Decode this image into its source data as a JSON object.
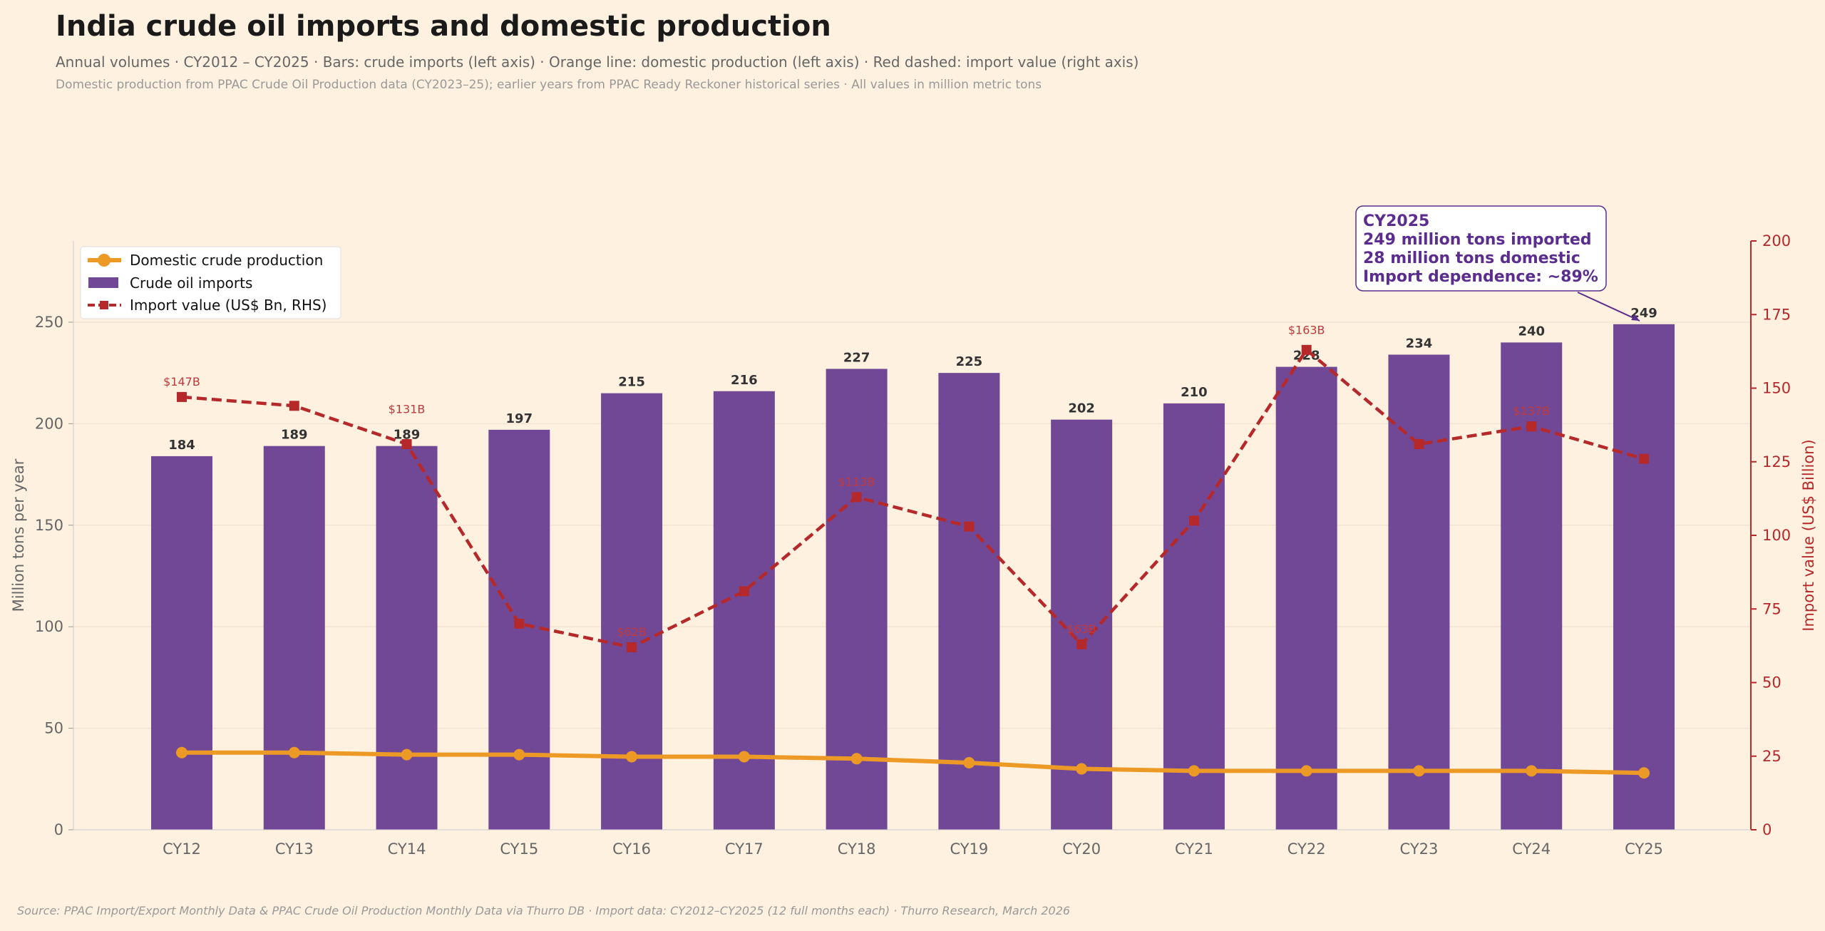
{
  "chart_data": {
    "type": "bar",
    "title": "India crude oil imports and domestic production",
    "subtitle": "Annual volumes  ·  CY2012 – CY2025  ·  Bars: crude imports (left axis)  ·  Orange line: domestic production (left axis)  ·  Red dashed: import value (right axis)",
    "note": "Domestic production from PPAC Crude Oil Production data (CY2023–25); earlier years from PPAC Ready Reckoner historical series  ·  All values in million metric tons",
    "source": "Source: PPAC Import/Export Monthly Data & PPAC Crude Oil Production Monthly Data via Thurro DB  ·  Import data: CY2012–CY2025 (12 full months each)  ·  Thurro Research, March 2026",
    "categories": [
      "CY12",
      "CY13",
      "CY14",
      "CY15",
      "CY16",
      "CY17",
      "CY18",
      "CY19",
      "CY20",
      "CY21",
      "CY22",
      "CY23",
      "CY24",
      "CY25"
    ],
    "ylabel": "Million tons per year",
    "y2label": "Import value (US$ Billion)",
    "ylim": [
      0,
      290
    ],
    "y2lim": [
      0,
      200
    ],
    "yticks": [
      0,
      50,
      100,
      150,
      200,
      250
    ],
    "y2ticks": [
      0,
      25,
      50,
      75,
      100,
      125,
      150,
      175,
      200
    ],
    "grid": true,
    "legend_placement": "top-left",
    "series": [
      {
        "name": "Crude oil imports",
        "type": "bar",
        "axis": "left",
        "color": "#714896",
        "values": [
          184,
          189,
          189,
          197,
          215,
          216,
          227,
          225,
          202,
          210,
          228,
          234,
          240,
          249
        ]
      },
      {
        "name": "Domestic crude production",
        "type": "line",
        "axis": "left",
        "color": "#ec9a25",
        "values": [
          38,
          38,
          37,
          37,
          36,
          36,
          35,
          33,
          30,
          29,
          29,
          29,
          29,
          28
        ]
      },
      {
        "name": "Import value (US$ Bn, RHS)",
        "type": "line",
        "style": "dashed",
        "axis": "right",
        "color": "#b5292b",
        "values": [
          147,
          144,
          131,
          70,
          62,
          81,
          113,
          103,
          63,
          105,
          163,
          131,
          137,
          126
        ],
        "labels": [
          "$147B",
          "",
          "$131B",
          "",
          "$62B",
          "",
          "$113B",
          "",
          "$63B",
          "",
          "$163B",
          "",
          "$137B",
          ""
        ]
      }
    ],
    "annotation": {
      "lines": [
        "CY2025",
        "249 million tons imported",
        "28 million tons domestic",
        "Import dependence: ~89%"
      ],
      "color": "#5b2d8e",
      "target": "CY25"
    }
  }
}
